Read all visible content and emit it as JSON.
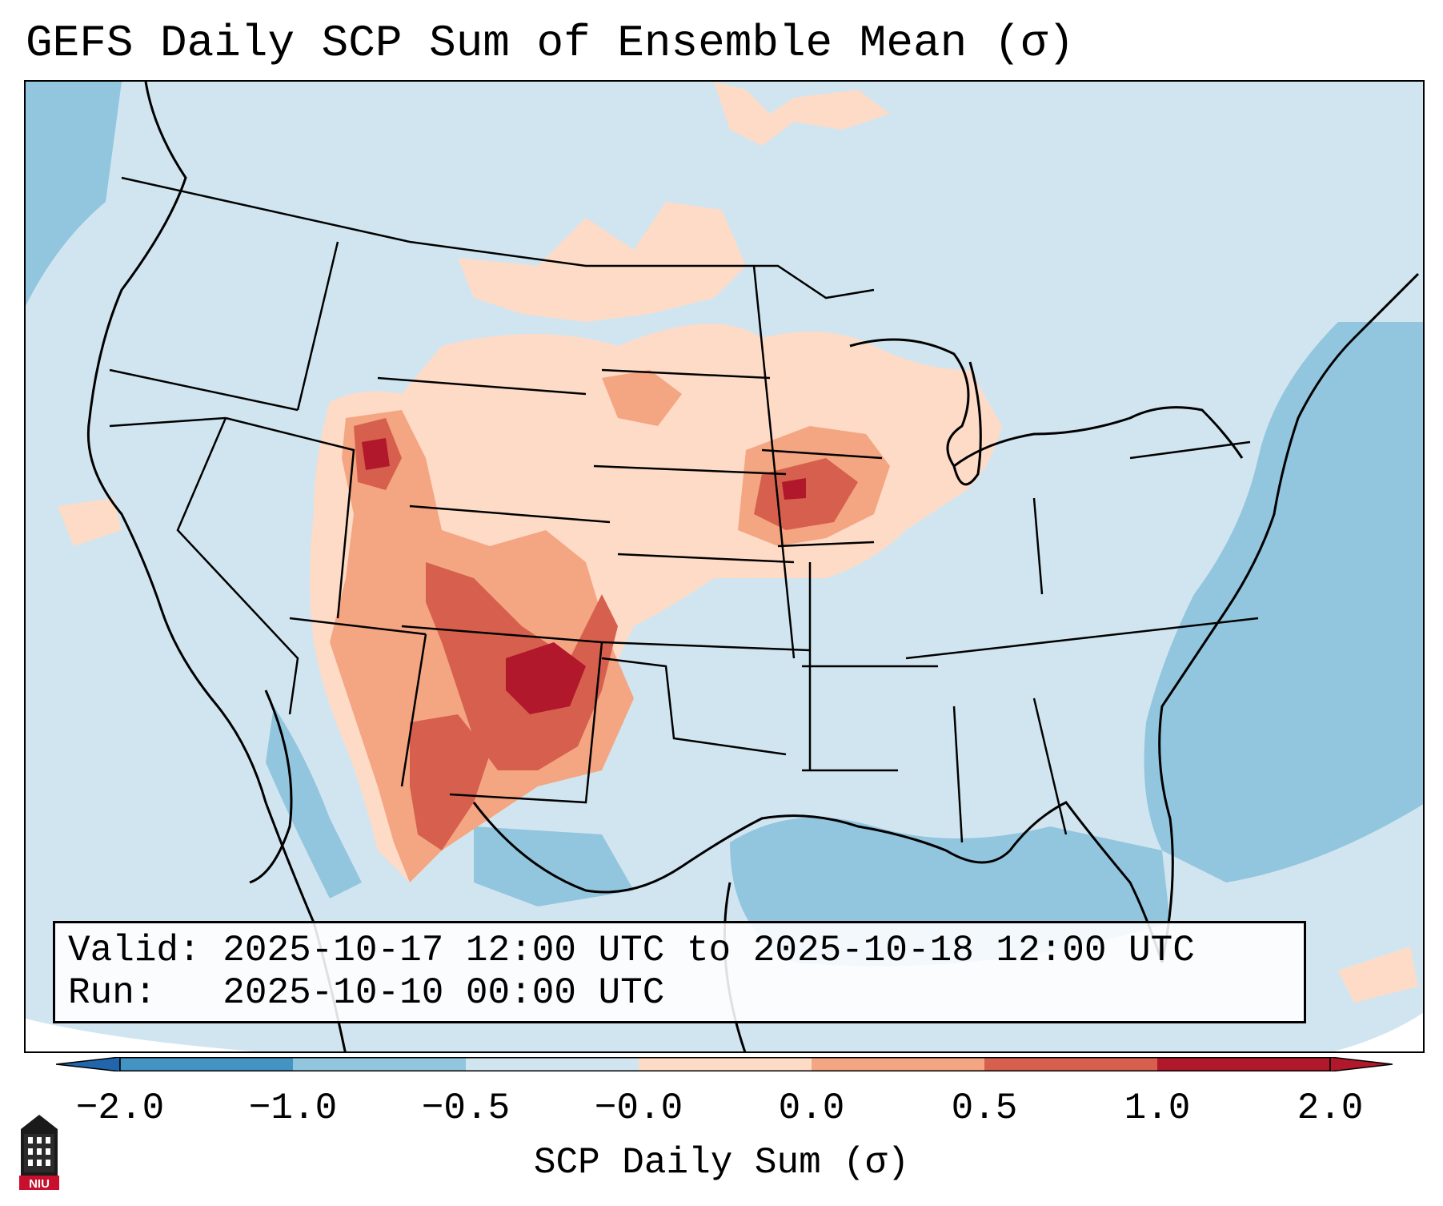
{
  "title": "GEFS Daily SCP Sum of Ensemble Mean (σ)",
  "info": {
    "valid_label": "Valid:",
    "valid_value": "2025-10-17 12:00 UTC to 2025-10-18 12:00 UTC",
    "run_label": "Run:",
    "run_value": "2025-10-10 00:00 UTC"
  },
  "colorbar": {
    "label": "SCP Daily Sum (σ)",
    "ticks": [
      "−2.0",
      "−1.0",
      "−0.5",
      "−0.0",
      "0.0",
      "0.5",
      "1.0",
      "2.0"
    ],
    "colors": [
      "#2166ac",
      "#4393c3",
      "#92c5de",
      "#d1e5f0",
      "#fddbc7",
      "#f4a582",
      "#d6604d",
      "#b2182b"
    ]
  },
  "logo": {
    "text": "NIU",
    "icon": "university-tower-icon"
  }
}
